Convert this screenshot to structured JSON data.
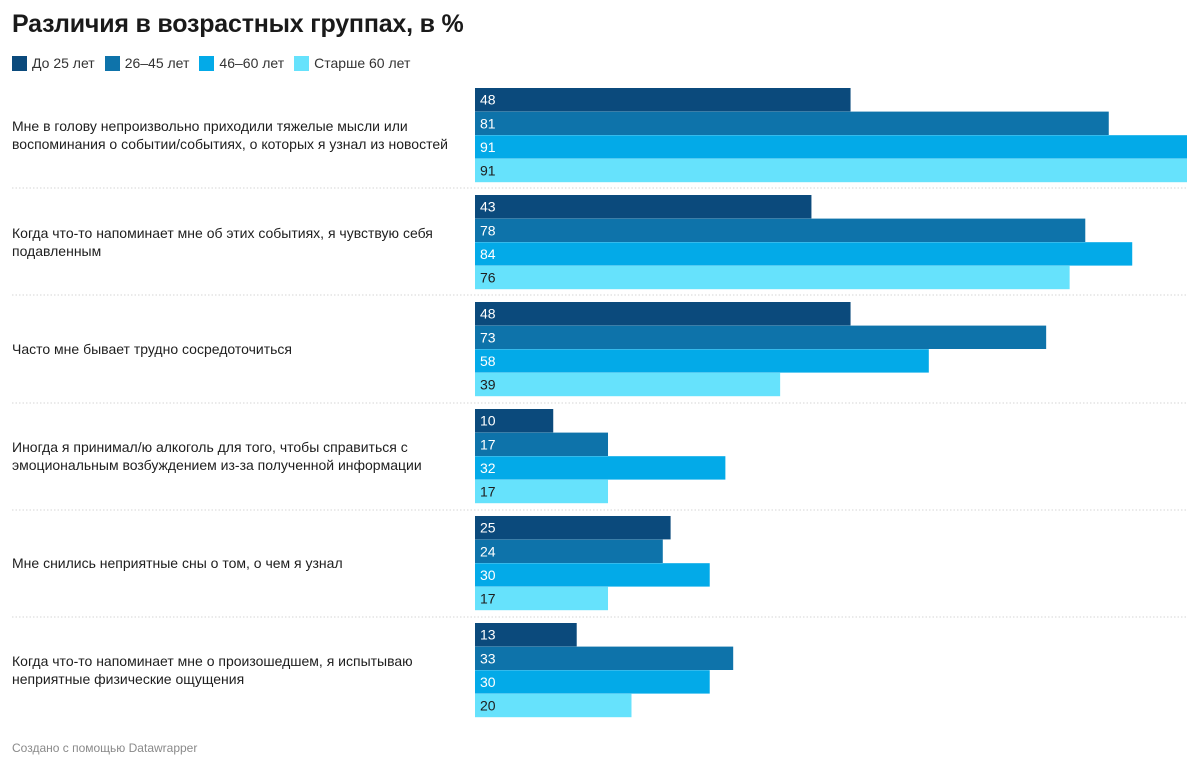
{
  "chart_data": {
    "type": "bar",
    "orientation": "horizontal",
    "title": "Различия в возрастных группах, в %",
    "xlim": [
      0,
      91
    ],
    "categories": [
      "Мне в голову непроизвольно приходили тяжелые мысли или воспоминания о событии/событиях, о которых я узнал из новостей",
      "Когда что-то напоминает мне об этих событиях, я чувствую себя подавленным",
      "Часто мне бывает трудно сосредоточиться",
      "Иногда я принимал/ю алкоголь для того, чтобы справиться с эмоциональным возбуждением из-за полученной информации",
      "Мне снились неприятные сны о том, о чем я узнал",
      "Когда что-то напоминает мне о произошедшем, я испытываю неприятные физические ощущения"
    ],
    "series": [
      {
        "name": "До 25 лет",
        "color": "#0b4a7c",
        "values": [
          48,
          43,
          48,
          10,
          25,
          13
        ]
      },
      {
        "name": "26–45 лет",
        "color": "#0e73aa",
        "values": [
          81,
          78,
          73,
          17,
          24,
          33
        ]
      },
      {
        "name": "46–60 лет",
        "color": "#03aae8",
        "values": [
          91,
          84,
          58,
          32,
          30,
          30
        ]
      },
      {
        "name": "Старше 60 лет",
        "color": "#66e2fc",
        "values": [
          91,
          76,
          39,
          17,
          17,
          20
        ]
      }
    ],
    "footer": "Создано с помощью Datawrapper"
  }
}
